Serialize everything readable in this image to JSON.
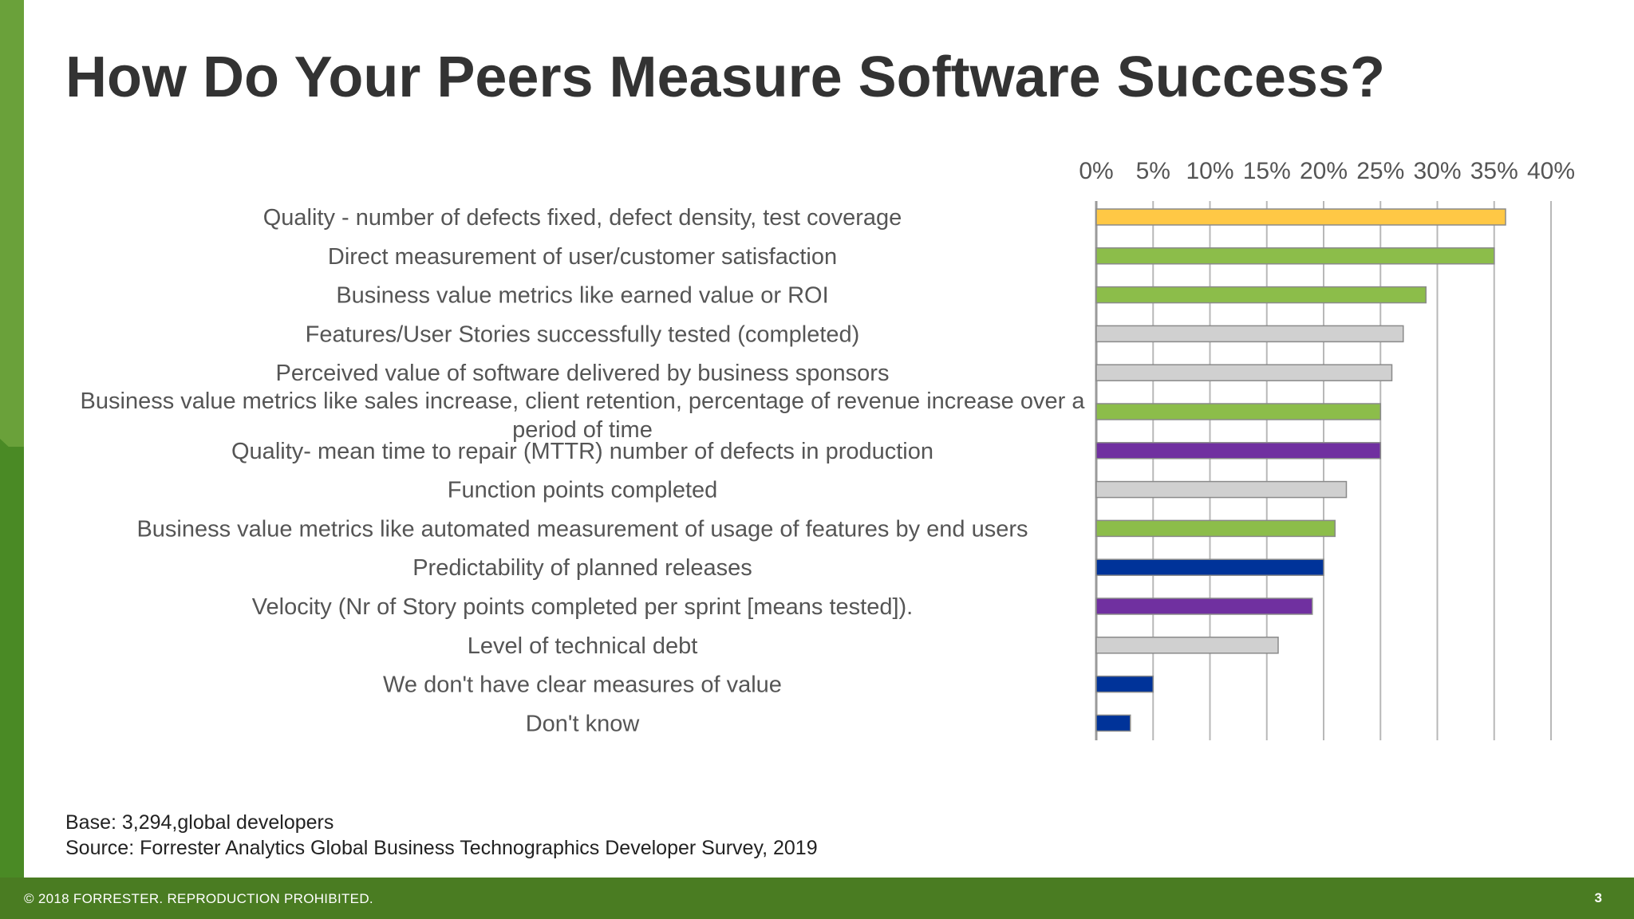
{
  "slide": {
    "title": "How Do Your Peers Measure Software Success?",
    "base_note": "Base: 3,294,global developers",
    "source_note": "Source: Forrester Analytics Global Business Technographics Developer Survey, 2019",
    "copyright": "© 2018 FORRESTER. REPRODUCTION PROHIBITED.",
    "page_number": "3"
  },
  "colors": {
    "brand_green": "#4a7c22",
    "left_bar_green": "#6aa13a",
    "title_text": "#333333"
  },
  "chart_data": {
    "type": "bar",
    "orientation": "horizontal",
    "title": "",
    "xlabel": "",
    "ylabel": "",
    "xlim": [
      0,
      40
    ],
    "x_ticks": [
      "0%",
      "5%",
      "10%",
      "15%",
      "20%",
      "25%",
      "30%",
      "35%",
      "40%"
    ],
    "grid": true,
    "legend": "none",
    "categories": [
      "Quality - number of defects fixed, defect density, test coverage",
      "Direct measurement of user/customer satisfaction",
      "Business value metrics like earned value or ROI",
      "Features/User Stories successfully tested (completed)",
      "Perceived value of software delivered by business sponsors",
      "Business value metrics like sales increase, client retention, percentage of revenue increase over a period of time",
      "Quality- mean time to repair (MTTR) number of defects in production",
      "Function points completed",
      "Business value metrics like automated measurement of usage of features by end users",
      "Predictability of planned releases",
      "Velocity (Nr of Story points completed per sprint [means tested]).",
      "Level of technical debt",
      "We don't have clear measures of value",
      "Don't know"
    ],
    "label_lines": [
      [
        "Quality - number of defects fixed, defect density, test coverage"
      ],
      [
        "Direct measurement of user/customer satisfaction"
      ],
      [
        "Business value metrics like earned value or ROI"
      ],
      [
        "Features/User Stories successfully tested (completed)"
      ],
      [
        "Perceived value of software delivered by business sponsors"
      ],
      [
        "Business value metrics like sales increase, client retention, percentage of revenue increase over a",
        "period of time"
      ],
      [
        "Quality- mean time to repair (MTTR) number of defects in production"
      ],
      [
        "Function points completed"
      ],
      [
        "Business value metrics like automated measurement of usage of features by end users"
      ],
      [
        "Predictability of planned releases"
      ],
      [
        "Velocity (Nr of Story points completed per sprint [means tested])."
      ],
      [
        "Level of technical debt"
      ],
      [
        "We don't have clear measures of value"
      ],
      [
        "Don't know"
      ]
    ],
    "values": [
      36,
      35,
      29,
      27,
      26,
      25,
      25,
      22,
      21,
      20,
      19,
      16,
      5,
      3
    ],
    "bar_colors": [
      "#ffc845",
      "#8cbd4a",
      "#8cbd4a",
      "#d0d0d0",
      "#d0d0d0",
      "#8cbd4a",
      "#7030a0",
      "#d0d0d0",
      "#8cbd4a",
      "#003399",
      "#7030a0",
      "#d0d0d0",
      "#003399",
      "#003399"
    ]
  }
}
